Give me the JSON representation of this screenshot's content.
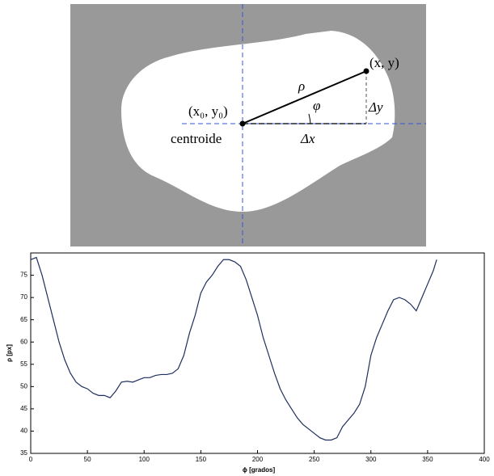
{
  "diagram": {
    "centroid_label": "(x₀, y₀)",
    "centroid_caption": "centroide",
    "point_label": "(x, y)",
    "rho": "ρ",
    "phi": "φ",
    "dx": "Δx",
    "dy": "Δy"
  },
  "chart_data": {
    "type": "line",
    "x_label": "ϕ [grados]",
    "y_label": "ρ [px]",
    "xlim": [
      0,
      400
    ],
    "xticks": [
      0,
      50,
      100,
      150,
      200,
      250,
      300,
      350,
      400
    ],
    "ylim": [
      35,
      80
    ],
    "yticks": [
      35,
      40,
      45,
      50,
      55,
      60,
      65,
      70,
      75
    ],
    "grid": false,
    "x": [
      0,
      5,
      10,
      15,
      20,
      25,
      30,
      35,
      40,
      45,
      50,
      55,
      60,
      65,
      70,
      75,
      80,
      85,
      90,
      95,
      100,
      105,
      110,
      115,
      120,
      125,
      130,
      135,
      140,
      145,
      150,
      155,
      160,
      165,
      170,
      175,
      180,
      185,
      190,
      195,
      200,
      205,
      210,
      215,
      220,
      225,
      230,
      235,
      240,
      245,
      250,
      255,
      260,
      265,
      270,
      275,
      280,
      285,
      290,
      295,
      300,
      305,
      310,
      315,
      320,
      325,
      330,
      335,
      340,
      345,
      350,
      355,
      358
    ],
    "series": [
      {
        "color": "#1f2f5e",
        "values": [
          78.5,
          79,
          75,
          70,
          65,
          60,
          56,
          53,
          51,
          50,
          49.5,
          48.5,
          48,
          48,
          47.5,
          49,
          51,
          51.2,
          51,
          51.5,
          52,
          52,
          52.5,
          52.7,
          52.7,
          53,
          54,
          57,
          62,
          66,
          71,
          73.5,
          75,
          77,
          78.5,
          78.5,
          78,
          77,
          74,
          70,
          66,
          61,
          57,
          53,
          49.5,
          47,
          45,
          43,
          41.5,
          40.5,
          39.5,
          38.5,
          38,
          38,
          38.5,
          41,
          42.5,
          44,
          46,
          50,
          57,
          61,
          64,
          67,
          69.5,
          70,
          69.5,
          68.5,
          67,
          70,
          73,
          76,
          78.5
        ]
      }
    ]
  }
}
